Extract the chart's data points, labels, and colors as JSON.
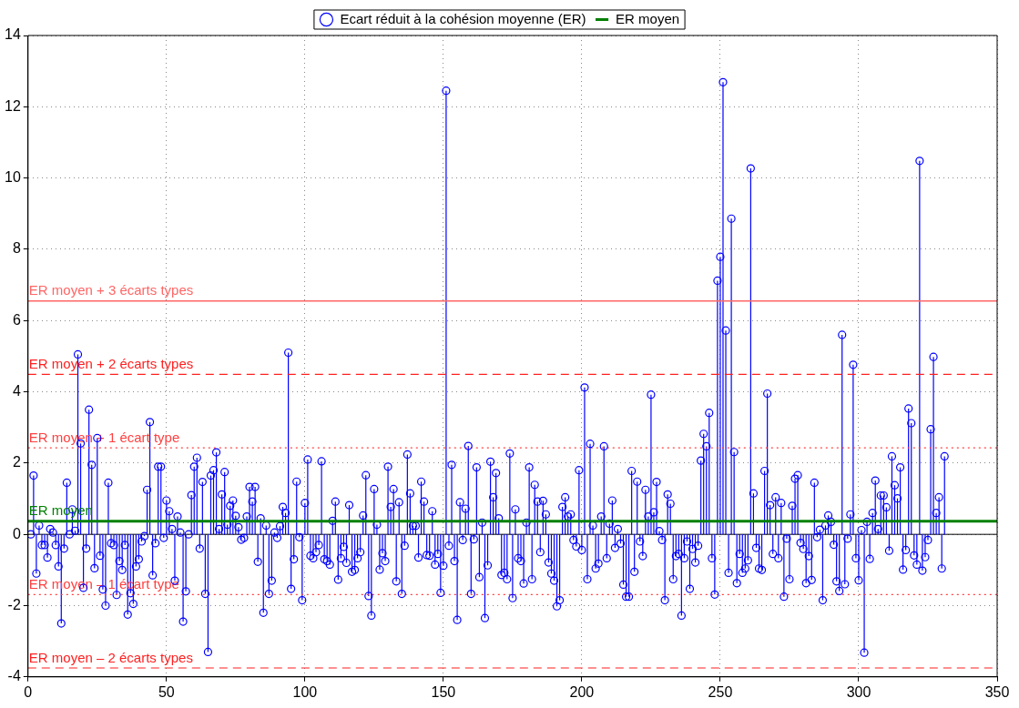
{
  "chart_data": {
    "type": "lollipop",
    "xlim": [
      0,
      350
    ],
    "ylim": [
      -4,
      14
    ],
    "xticks": [
      0,
      50,
      100,
      150,
      200,
      250,
      300,
      350
    ],
    "yticks": [
      -4,
      -2,
      0,
      2,
      4,
      6,
      8,
      10,
      12,
      14
    ],
    "grid": true,
    "legend": "top",
    "annotations": [
      {
        "text": "ER moyen",
        "x": 0,
        "y": 0.37
      }
    ],
    "x": [
      1,
      2,
      3,
      4,
      5,
      6,
      7,
      8,
      9,
      10,
      11,
      12,
      13,
      14,
      15,
      16,
      17,
      18,
      19,
      20,
      21,
      22,
      23,
      24,
      25,
      26,
      27,
      28,
      29,
      30,
      31,
      32,
      33,
      34,
      35,
      36,
      37,
      38,
      39,
      40,
      41,
      42,
      43,
      44,
      45,
      46,
      47,
      48,
      49,
      50,
      51,
      52,
      53,
      54,
      55,
      56,
      57,
      58,
      59,
      60,
      61,
      62,
      63,
      64,
      65,
      66,
      67,
      68,
      69,
      70,
      71,
      72,
      73,
      74,
      75,
      76,
      77,
      78,
      79,
      80,
      81,
      82,
      83,
      84,
      85,
      86,
      87,
      88,
      89,
      90,
      91,
      92,
      93,
      94,
      95,
      96,
      97,
      98,
      99,
      100,
      101,
      102,
      103,
      104,
      105,
      106,
      107,
      108,
      109,
      110,
      111,
      112,
      113,
      114,
      115,
      116,
      117,
      118,
      119,
      120,
      121,
      122,
      123,
      124,
      125,
      126,
      127,
      128,
      129,
      130,
      131,
      132,
      133,
      134,
      135,
      136,
      137,
      138,
      139,
      140,
      141,
      142,
      143,
      144,
      145,
      146,
      147,
      148,
      149,
      150,
      151,
      152,
      153,
      154,
      155,
      156,
      157,
      158,
      159,
      160,
      161,
      162,
      163,
      164,
      165,
      166,
      167,
      168,
      169,
      170,
      171,
      172,
      173,
      174,
      175,
      176,
      177,
      178,
      179,
      180,
      181,
      182,
      183,
      184,
      185,
      186,
      187,
      188,
      189,
      190,
      191,
      192,
      193,
      194,
      195,
      196,
      197,
      198,
      199,
      200,
      201,
      202,
      203,
      204,
      205,
      206,
      207,
      208,
      209,
      210,
      211,
      212,
      213,
      214,
      215,
      216,
      217,
      218,
      219,
      220,
      221,
      222,
      223,
      224,
      225,
      226,
      227,
      228,
      229,
      230,
      231,
      232,
      233,
      234,
      235,
      236,
      237,
      238,
      239,
      240,
      241,
      242,
      243,
      244,
      245,
      246,
      247,
      248,
      249,
      250,
      251,
      252,
      253,
      254,
      255,
      256,
      257,
      258,
      259,
      260,
      261,
      262,
      263,
      264,
      265,
      266,
      267,
      268,
      269,
      270,
      271,
      272,
      273,
      274,
      275,
      276,
      277,
      278,
      279,
      280,
      281,
      282,
      283,
      284,
      285,
      286,
      287,
      288,
      289,
      290,
      291,
      292,
      293,
      294,
      295,
      296,
      297,
      298,
      299,
      300,
      301,
      302,
      303,
      304,
      305,
      306,
      307,
      308,
      309,
      310,
      311,
      312,
      313,
      314,
      315,
      316,
      317,
      318,
      319,
      320,
      321,
      322,
      323,
      324,
      325,
      326,
      327,
      328,
      329,
      330,
      331
    ],
    "series": [
      {
        "name": "Ecart réduit à la cohésion moyenne (ER)",
        "type": "lollipop",
        "marker": "circle",
        "color": "#0000ff",
        "values": [
          0,
          1.65,
          -1.1,
          0.25,
          -0.3,
          -0.3,
          -0.65,
          0.15,
          0.05,
          -0.3,
          -0.9,
          -2.5,
          -0.4,
          1.45,
          0,
          0.7,
          0.1,
          5.05,
          2.55,
          -1.5,
          -0.4,
          3.5,
          1.95,
          -0.95,
          2.7,
          -0.6,
          -1.55,
          -2.0,
          1.45,
          -0.25,
          -0.3,
          -1.7,
          -0.75,
          -1.0,
          -0.3,
          -2.25,
          -1.65,
          -1.95,
          -0.9,
          -0.7,
          -0.2,
          -0.05,
          1.25,
          3.15,
          -1.15,
          -0.25,
          1.9,
          1.9,
          -0.1,
          0.95,
          0.65,
          0.15,
          -1.3,
          0.5,
          0.05,
          -2.45,
          -1.6,
          0,
          1.1,
          1.9,
          2.15,
          -0.4,
          1.47,
          -1.67,
          -3.3,
          1.65,
          1.8,
          2.3,
          0.15,
          1.12,
          1.75,
          0.27,
          0.8,
          0.95,
          0.52,
          0.2,
          -0.15,
          -0.1,
          0.5,
          1.33,
          0.92,
          1.33,
          -0.77,
          0.45,
          -2.2,
          0.25,
          -1.67,
          -1.3,
          0.05,
          -0.1,
          0.23,
          0.77,
          0.6,
          5.1,
          -1.53,
          -0.7,
          1.48,
          -0.08,
          -1.85,
          0.88,
          2.1,
          -0.6,
          -0.67,
          -0.5,
          -0.3,
          2.05,
          -0.7,
          -0.75,
          -0.85,
          0.38,
          0.92,
          -1.27,
          -0.67,
          -0.35,
          -0.8,
          0.82,
          -1.05,
          -1.0,
          -0.67,
          -0.5,
          0.53,
          1.66,
          -1.73,
          -2.28,
          1.27,
          0.27,
          -0.99,
          -0.53,
          -0.75,
          1.9,
          0.77,
          1.27,
          -1.32,
          0.9,
          -1.67,
          -0.32,
          2.24,
          1.15,
          0.24,
          0.24,
          -0.65,
          1.48,
          0.92,
          -0.58,
          -0.6,
          0.65,
          -0.85,
          -0.55,
          -1.64,
          -0.88,
          12.45,
          -0.32,
          1.95,
          -0.75,
          -2.4,
          0.9,
          -0.16,
          0.72,
          2.48,
          -1.67,
          -0.14,
          1.88,
          -1.2,
          0.33,
          -2.35,
          -0.87,
          2.04,
          1.04,
          1.72,
          0.45,
          -1.14,
          -1.08,
          -1.26,
          2.27,
          -1.79,
          0.7,
          -0.67,
          -0.75,
          -1.38,
          0.33,
          1.88,
          -1.26,
          1.39,
          0.92,
          -0.5,
          0.94,
          0.56,
          -0.79,
          -1.1,
          -1.3,
          -2.02,
          -1.85,
          0.77,
          1.04,
          0.5,
          0.56,
          -0.16,
          -0.34,
          1.8,
          -0.44,
          4.12,
          -1.26,
          2.54,
          0.25,
          -0.96,
          -0.82,
          0.5,
          2.47,
          -0.67,
          0.3,
          0.95,
          -0.38,
          0.15,
          -0.26,
          -1.41,
          -1.75,
          -1.75,
          1.78,
          -1.05,
          1.48,
          -0.2,
          -0.61,
          1.25,
          0.5,
          3.92,
          0.62,
          1.47,
          0.09,
          -0.16,
          -1.85,
          1.12,
          0.86,
          -1.26,
          -0.61,
          -0.55,
          -2.28,
          -0.67,
          -0.2,
          -1.53,
          -0.41,
          -0.79,
          -0.32,
          2.07,
          2.82,
          2.47,
          3.41,
          -0.67,
          -1.69,
          7.12,
          7.79,
          12.69,
          5.72,
          -1.08,
          8.86,
          2.31,
          -1.37,
          -0.55,
          -1.08,
          -0.96,
          -0.73,
          10.27,
          1.15,
          -0.38,
          -0.96,
          -1.0,
          1.78,
          3.95,
          0.82,
          -0.55,
          1.04,
          -0.67,
          0.88,
          -1.75,
          -0.12,
          -1.26,
          0.8,
          1.56,
          1.66,
          -0.24,
          -0.41,
          -1.37,
          -0.61,
          -1.28,
          1.45,
          -0.08,
          0.13,
          -1.85,
          0.25,
          0.53,
          0.35,
          -0.29,
          -1.32,
          -1.59,
          5.6,
          -1.4,
          -0.12,
          0.56,
          4.76,
          -0.67,
          -1.29,
          0.12,
          -3.32,
          0.35,
          -0.69,
          0.6,
          1.51,
          0.15,
          1.09,
          1.09,
          0.76,
          -0.46,
          2.19,
          1.38,
          1.01,
          1.88,
          -0.99,
          -0.44,
          3.53,
          3.12,
          -0.59,
          -0.85,
          10.48,
          -1.02,
          -0.64,
          -0.16,
          2.95,
          4.98,
          0.6,
          1.04,
          -0.96,
          2.19
        ]
      },
      {
        "name": "ER moyen",
        "type": "line",
        "marker": "none",
        "color": "#008000",
        "x": [
          0,
          350
        ],
        "values": [
          0.37,
          0.37
        ]
      }
    ],
    "ref_lines": [
      {
        "axis": "y",
        "value": 6.55,
        "label": "ER moyen + 3 écarts types",
        "color": "#ff6666",
        "line_style": "solid"
      },
      {
        "axis": "y",
        "value": 4.49,
        "label": "ER moyen + 2 écarts types",
        "color": "#ff2020",
        "line_style": "dashed"
      },
      {
        "axis": "y",
        "value": 2.43,
        "label": "ER moyen + 1 écart type",
        "color": "#ff4040",
        "line_style": "dotted"
      },
      {
        "axis": "y",
        "value": -1.69,
        "label": "ER moyen – 1 écart type",
        "color": "#ff4040",
        "line_style": "dotted"
      },
      {
        "axis": "y",
        "value": -3.75,
        "label": "ER moyen – 2 écarts types",
        "color": "#ff2020",
        "line_style": "dashed"
      }
    ]
  }
}
